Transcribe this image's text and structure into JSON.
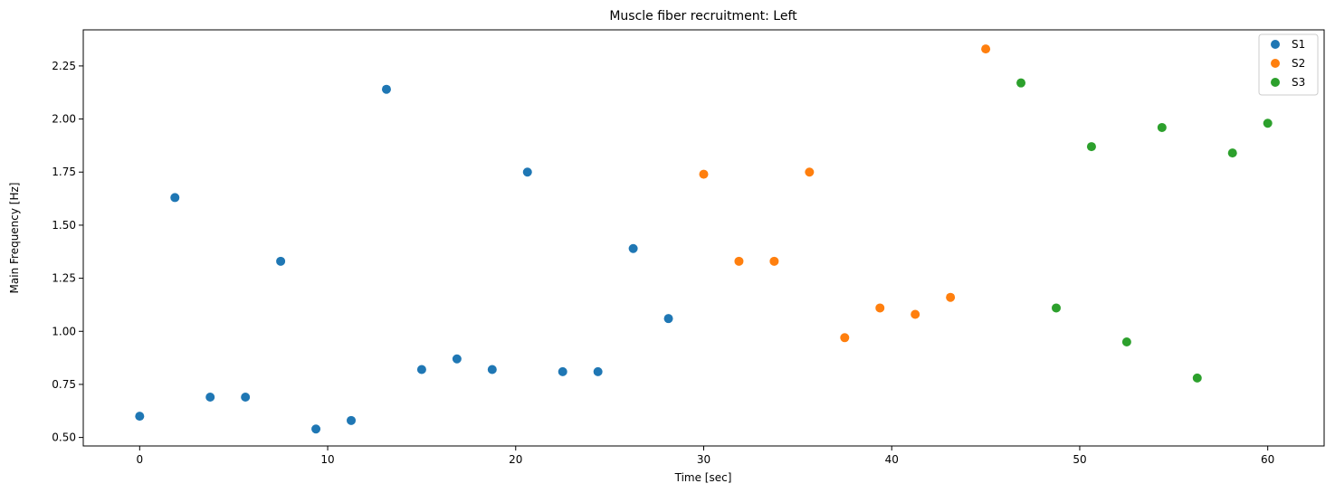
{
  "chart_data": {
    "type": "scatter",
    "title": "Muscle fiber recruitment: Left",
    "xlabel": "Time [sec]",
    "ylabel": "Main Frequency [Hz]",
    "xlim": [
      -3,
      63
    ],
    "ylim": [
      0.46,
      2.42
    ],
    "xticks": [
      0,
      10,
      20,
      30,
      40,
      50,
      60
    ],
    "xtick_labels": [
      "0",
      "10",
      "20",
      "30",
      "40",
      "50",
      "60"
    ],
    "yticks": [
      0.5,
      0.75,
      1.0,
      1.25,
      1.5,
      1.75,
      2.0,
      2.25
    ],
    "ytick_labels": [
      "0.50",
      "0.75",
      "1.00",
      "1.25",
      "1.50",
      "1.75",
      "2.00",
      "2.25"
    ],
    "grid": false,
    "legend_position": "top-right",
    "series": [
      {
        "name": "S1",
        "color": "#1f77b4",
        "x": [
          0,
          1.875,
          3.75,
          5.625,
          7.5,
          9.375,
          11.25,
          13.125,
          15,
          16.875,
          18.75,
          20.625,
          22.5,
          24.375,
          26.25,
          28.125
        ],
        "y": [
          0.6,
          1.63,
          0.69,
          0.69,
          1.33,
          0.54,
          0.58,
          2.14,
          0.82,
          0.87,
          0.82,
          1.75,
          0.81,
          0.81,
          1.39,
          1.06
        ]
      },
      {
        "name": "S2",
        "color": "#ff7f0e",
        "x": [
          30,
          31.875,
          33.75,
          35.625,
          37.5,
          39.375,
          41.25,
          43.125,
          45
        ],
        "y": [
          1.74,
          1.33,
          1.33,
          1.75,
          0.97,
          1.11,
          1.08,
          1.16,
          2.33
        ]
      },
      {
        "name": "S3",
        "color": "#2ca02c",
        "x": [
          46.875,
          48.75,
          50.625,
          52.5,
          54.375,
          56.25,
          58.125,
          60
        ],
        "y": [
          2.17,
          1.11,
          1.87,
          0.95,
          1.96,
          0.78,
          1.84,
          1.98
        ]
      }
    ]
  }
}
